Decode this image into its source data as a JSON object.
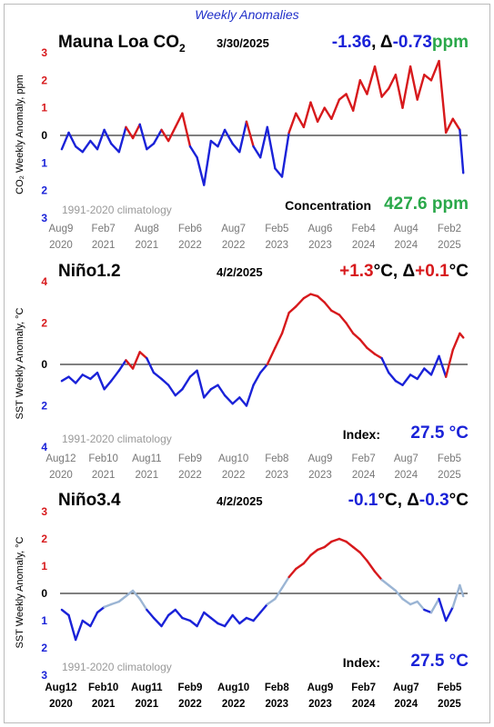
{
  "header": {
    "title": "Weekly Anomalies"
  },
  "colors": {
    "positive": "#d7191c",
    "negative": "#1a22d8",
    "neutral": "#9bb5d4",
    "green": "#2aa84a",
    "title_blue": "#1f2fc9"
  },
  "panels": [
    {
      "id": "co2",
      "title": "Mauna Loa CO",
      "title_sub": "2",
      "date": "3/30/2025",
      "value_parts": [
        {
          "text": "-1.36",
          "color": "#1a22d8"
        },
        {
          "text": ", Δ",
          "color": "#000000"
        },
        {
          "text": "-0.73",
          "color": "#1a22d8"
        },
        {
          "text": "ppm",
          "color": "#2aa84a"
        }
      ],
      "ylabel": "CO₂ Weekly Anomaly, ppm",
      "climatology": "1991-2020 climatology",
      "bottom_label": "Concentration",
      "bottom_value": "427.6 ppm",
      "bottom_value_color": "#2aa84a"
    },
    {
      "id": "nino12",
      "title": "Niño1.2",
      "title_sub": "",
      "date": "4/2/2025",
      "value_parts": [
        {
          "text": "+1.3",
          "color": "#d7191c"
        },
        {
          "text": "°C, Δ",
          "color": "#000000"
        },
        {
          "text": "+0.1",
          "color": "#d7191c"
        },
        {
          "text": "°C",
          "color": "#000000"
        }
      ],
      "ylabel": "SST Weekly Anomaly, °C",
      "climatology": "1991-2020 climatology",
      "bottom_label": "Index:",
      "bottom_value": "27.5 °C",
      "bottom_value_color": "#1a22d8"
    },
    {
      "id": "nino34",
      "title": "Niño3.4",
      "title_sub": "",
      "date": "4/2/2025",
      "value_parts": [
        {
          "text": "-0.1",
          "color": "#1a22d8"
        },
        {
          "text": "°C, Δ",
          "color": "#000000"
        },
        {
          "text": "-0.3",
          "color": "#1a22d8"
        },
        {
          "text": "°C",
          "color": "#000000"
        }
      ],
      "ylabel": "SST Weekly Anomaly, °C",
      "climatology": "1991-2020 climatology",
      "bottom_label": "Index:",
      "bottom_value": "27.5 °C",
      "bottom_value_color": "#1a22d8"
    }
  ],
  "chart_data": [
    {
      "type": "line",
      "title": "Mauna Loa CO2",
      "ylabel": "CO2 Weekly Anomaly, ppm",
      "xlim": [
        2020.6,
        2025.3
      ],
      "ylim": [
        -3,
        3
      ],
      "y_tick_labels": [
        "3",
        "2",
        "1",
        "0",
        "1",
        "2",
        "3"
      ],
      "x_tick_labels": [
        [
          "Aug9",
          "2020"
        ],
        [
          "Feb7",
          "2021"
        ],
        [
          "Aug8",
          "2021"
        ],
        [
          "Feb6",
          "2022"
        ],
        [
          "Aug7",
          "2022"
        ],
        [
          "Feb5",
          "2023"
        ],
        [
          "Aug6",
          "2023"
        ],
        [
          "Feb4",
          "2024"
        ],
        [
          "Aug4",
          "2024"
        ],
        [
          "Feb2",
          "2025"
        ]
      ],
      "x_tick_positions": [
        2020.61,
        2021.1,
        2021.6,
        2022.1,
        2022.6,
        2023.1,
        2023.6,
        2024.1,
        2024.59,
        2025.09
      ],
      "colors_by_sign": true,
      "x": [
        2020.62,
        2020.7,
        2020.78,
        2020.86,
        2020.95,
        2021.03,
        2021.11,
        2021.19,
        2021.28,
        2021.36,
        2021.44,
        2021.52,
        2021.6,
        2021.68,
        2021.77,
        2021.85,
        2021.93,
        2022.01,
        2022.1,
        2022.18,
        2022.26,
        2022.34,
        2022.42,
        2022.5,
        2022.59,
        2022.67,
        2022.75,
        2022.83,
        2022.91,
        2022.99,
        2023.08,
        2023.16,
        2023.24,
        2023.32,
        2023.41,
        2023.49,
        2023.57,
        2023.65,
        2023.73,
        2023.82,
        2023.9,
        2023.98,
        2024.06,
        2024.14,
        2024.23,
        2024.31,
        2024.39,
        2024.47,
        2024.55,
        2024.64,
        2024.72,
        2024.8,
        2024.88,
        2024.97,
        2025.05,
        2025.13,
        2025.21,
        2025.25
      ],
      "y": [
        -0.5,
        0.1,
        -0.4,
        -0.6,
        -0.2,
        -0.5,
        0.2,
        -0.3,
        -0.6,
        0.3,
        -0.1,
        0.4,
        -0.5,
        -0.3,
        0.2,
        -0.2,
        0.3,
        0.8,
        -0.4,
        -0.8,
        -1.8,
        -0.2,
        -0.4,
        0.2,
        -0.3,
        -0.6,
        0.5,
        -0.4,
        -0.8,
        0.3,
        -1.2,
        -1.5,
        0.1,
        0.8,
        0.3,
        1.2,
        0.5,
        1.0,
        0.6,
        1.3,
        1.5,
        0.9,
        2.0,
        1.5,
        2.5,
        1.4,
        1.7,
        2.2,
        1.0,
        2.5,
        1.3,
        2.2,
        2.0,
        2.7,
        0.1,
        0.6,
        0.2,
        -1.36
      ]
    },
    {
      "type": "line",
      "title": "Niño1.2",
      "ylabel": "SST Weekly Anomaly, °C",
      "xlim": [
        2020.6,
        2025.3
      ],
      "ylim": [
        -4,
        4
      ],
      "y_tick_labels": [
        "4",
        "2",
        "0",
        "2",
        "4"
      ],
      "x_tick_labels": [
        [
          "Aug12",
          "2020"
        ],
        [
          "Feb10",
          "2021"
        ],
        [
          "Aug11",
          "2021"
        ],
        [
          "Feb9",
          "2022"
        ],
        [
          "Aug10",
          "2022"
        ],
        [
          "Feb8",
          "2023"
        ],
        [
          "Aug9",
          "2023"
        ],
        [
          "Feb7",
          "2024"
        ],
        [
          "Aug7",
          "2024"
        ],
        [
          "Feb5",
          "2025"
        ]
      ],
      "x_tick_positions": [
        2020.61,
        2021.1,
        2021.6,
        2022.1,
        2022.6,
        2023.1,
        2023.6,
        2024.1,
        2024.59,
        2025.09
      ],
      "colors_by_sign": true,
      "x": [
        2020.62,
        2020.7,
        2020.78,
        2020.86,
        2020.95,
        2021.03,
        2021.11,
        2021.19,
        2021.28,
        2021.36,
        2021.44,
        2021.52,
        2021.6,
        2021.68,
        2021.77,
        2021.85,
        2021.93,
        2022.01,
        2022.1,
        2022.18,
        2022.26,
        2022.34,
        2022.42,
        2022.5,
        2022.59,
        2022.67,
        2022.75,
        2022.83,
        2022.91,
        2022.99,
        2023.08,
        2023.16,
        2023.24,
        2023.32,
        2023.41,
        2023.49,
        2023.57,
        2023.65,
        2023.73,
        2023.82,
        2023.9,
        2023.98,
        2024.06,
        2024.14,
        2024.23,
        2024.31,
        2024.39,
        2024.47,
        2024.55,
        2024.64,
        2024.72,
        2024.8,
        2024.88,
        2024.97,
        2025.05,
        2025.13,
        2025.21,
        2025.25
      ],
      "y": [
        -0.8,
        -0.6,
        -0.9,
        -0.5,
        -0.7,
        -0.4,
        -1.2,
        -0.8,
        -0.3,
        0.2,
        -0.2,
        0.6,
        0.3,
        -0.4,
        -0.7,
        -1.0,
        -1.5,
        -1.2,
        -0.6,
        -0.3,
        -1.6,
        -1.2,
        -1.0,
        -1.5,
        -1.9,
        -1.6,
        -2.0,
        -1.0,
        -0.4,
        0.0,
        0.8,
        1.5,
        2.5,
        2.8,
        3.2,
        3.4,
        3.3,
        3.0,
        2.6,
        2.4,
        2.0,
        1.5,
        1.2,
        0.8,
        0.5,
        0.3,
        -0.4,
        -0.8,
        -1.0,
        -0.5,
        -0.7,
        -0.2,
        -0.5,
        0.4,
        -0.6,
        0.7,
        1.5,
        1.3
      ]
    },
    {
      "type": "line",
      "title": "Niño3.4",
      "ylabel": "SST Weekly Anomaly, °C",
      "xlim": [
        2020.6,
        2025.3
      ],
      "ylim": [
        -3,
        3
      ],
      "y_tick_labels": [
        "3",
        "2",
        "1",
        "0",
        "1",
        "2",
        "3"
      ],
      "x_tick_labels": [
        [
          "Aug12",
          "2020"
        ],
        [
          "Feb10",
          "2021"
        ],
        [
          "Aug11",
          "2021"
        ],
        [
          "Feb9",
          "2022"
        ],
        [
          "Aug10",
          "2022"
        ],
        [
          "Feb8",
          "2023"
        ],
        [
          "Aug9",
          "2023"
        ],
        [
          "Feb7",
          "2024"
        ],
        [
          "Aug7",
          "2024"
        ],
        [
          "Feb5",
          "2025"
        ]
      ],
      "x_tick_positions": [
        2020.61,
        2021.1,
        2021.6,
        2022.1,
        2022.6,
        2023.1,
        2023.6,
        2024.1,
        2024.59,
        2025.09
      ],
      "colors_by_threshold": 0.5,
      "x": [
        2020.62,
        2020.7,
        2020.78,
        2020.86,
        2020.95,
        2021.03,
        2021.11,
        2021.19,
        2021.28,
        2021.36,
        2021.44,
        2021.52,
        2021.6,
        2021.68,
        2021.77,
        2021.85,
        2021.93,
        2022.01,
        2022.1,
        2022.18,
        2022.26,
        2022.34,
        2022.42,
        2022.5,
        2022.59,
        2022.67,
        2022.75,
        2022.83,
        2022.91,
        2022.99,
        2023.08,
        2023.16,
        2023.24,
        2023.32,
        2023.41,
        2023.49,
        2023.57,
        2023.65,
        2023.73,
        2023.82,
        2023.9,
        2023.98,
        2024.06,
        2024.14,
        2024.23,
        2024.31,
        2024.39,
        2024.47,
        2024.55,
        2024.64,
        2024.72,
        2024.8,
        2024.88,
        2024.97,
        2025.05,
        2025.13,
        2025.21,
        2025.25
      ],
      "y": [
        -0.6,
        -0.8,
        -1.7,
        -1.0,
        -1.2,
        -0.7,
        -0.5,
        -0.4,
        -0.3,
        -0.1,
        0.1,
        -0.2,
        -0.6,
        -0.9,
        -1.2,
        -0.8,
        -0.6,
        -0.9,
        -1.0,
        -1.2,
        -0.7,
        -0.9,
        -1.1,
        -1.2,
        -0.8,
        -1.1,
        -0.9,
        -1.0,
        -0.7,
        -0.4,
        -0.2,
        0.2,
        0.6,
        0.9,
        1.1,
        1.4,
        1.6,
        1.7,
        1.9,
        2.0,
        1.9,
        1.7,
        1.5,
        1.2,
        0.8,
        0.5,
        0.3,
        0.1,
        -0.2,
        -0.4,
        -0.3,
        -0.6,
        -0.7,
        -0.2,
        -1.0,
        -0.5,
        0.3,
        -0.1
      ]
    }
  ]
}
